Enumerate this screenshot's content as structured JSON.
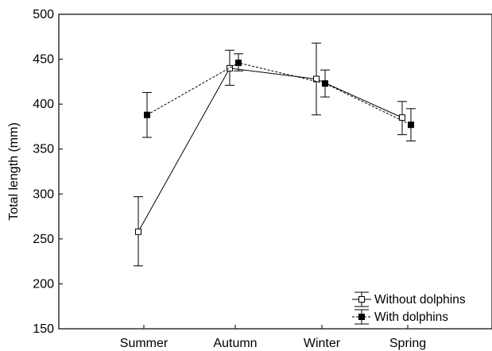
{
  "chart_data": {
    "type": "line",
    "title": "",
    "xlabel": "",
    "ylabel": "Total length (mm)",
    "ylim": [
      150,
      500
    ],
    "y_ticks": [
      150,
      200,
      250,
      300,
      350,
      400,
      450,
      500
    ],
    "categories": [
      "Summer",
      "Autumn",
      "Winter",
      "Spring"
    ],
    "grid": false,
    "legend_position": "bottom-right",
    "series": [
      {
        "name": "Without dolphins",
        "marker": "open-square",
        "line_style": "solid",
        "color": "#000000",
        "values": [
          258,
          440,
          428,
          385
        ],
        "err_low": [
          220,
          421,
          388,
          366
        ],
        "err_high": [
          297,
          460,
          468,
          403
        ]
      },
      {
        "name": "With dolphins",
        "marker": "filled-square",
        "line_style": "dashed",
        "color": "#000000",
        "values": [
          388,
          446,
          423,
          377
        ],
        "err_low": [
          363,
          437,
          408,
          359
        ],
        "err_high": [
          413,
          456,
          438,
          395
        ]
      }
    ]
  }
}
